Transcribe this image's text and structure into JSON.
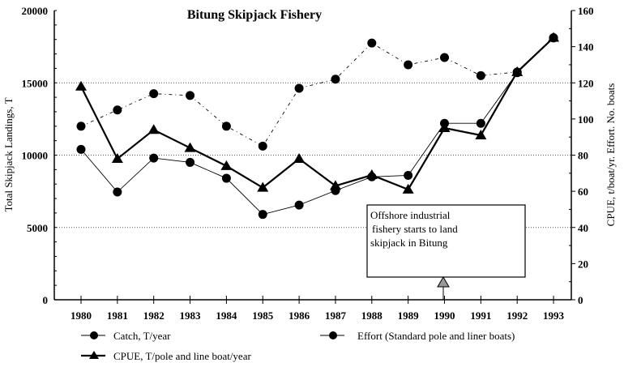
{
  "chart_data": {
    "type": "line",
    "title": "Bitung Skipjack Fishery",
    "ylabel": "Total Skipjack Landings, T",
    "y2label": "CPUE, t/boat/yr. Effort. No. boats",
    "ylim": [
      0,
      20000
    ],
    "y2lim": [
      0,
      160
    ],
    "yticks": [
      "0",
      "5000",
      "10000",
      "15000",
      "20000"
    ],
    "y2ticks": [
      "0",
      "20",
      "40",
      "60",
      "80",
      "100",
      "120",
      "140",
      "160"
    ],
    "categories": [
      "1980",
      "1981",
      "1982",
      "1983",
      "1984",
      "1985",
      "1986",
      "1987",
      "1988",
      "1989",
      "1990",
      "1991",
      "1992",
      "1993"
    ],
    "grid": "horizontal dotted",
    "legend_placement": "bottom",
    "series": [
      {
        "name": "Catch, T/year",
        "axis": "left",
        "marker": "circle",
        "line": "thin solid",
        "values": [
          10400,
          7450,
          9800,
          9500,
          8400,
          5900,
          6550,
          7550,
          8500,
          8600,
          12200,
          12200,
          15700,
          18100
        ]
      },
      {
        "name": "Effort (Standard pole and liner boats)",
        "axis": "right",
        "marker": "circle",
        "line": "dash-dot",
        "values": [
          96,
          105,
          114,
          113,
          96,
          85,
          117,
          122,
          142,
          130,
          134,
          124,
          126,
          145
        ]
      },
      {
        "name": "CPUE, T/pole and line boat/year",
        "axis": "right",
        "marker": "triangle",
        "line": "thick solid",
        "values": [
          118,
          78,
          94,
          84,
          74,
          62,
          78,
          63,
          69,
          61,
          95,
          91,
          126,
          145
        ]
      }
    ],
    "annotation": {
      "lines": [
        "Offshore industrial",
        "fishery starts to land",
        "skipjack in Bitung"
      ],
      "at": "1990"
    },
    "color": "#000000"
  }
}
